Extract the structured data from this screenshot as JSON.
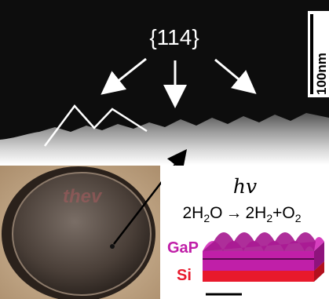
{
  "figure": {
    "sem_label": "{114}",
    "scale_bar_label": "100nm",
    "photon_symbol": "hv",
    "reaction": {
      "left": "2H",
      "left_sub": "2",
      "left_tail": "O",
      "arrow": "→",
      "right_a": "2H",
      "right_a_sub": "2",
      "right_plus": "+O",
      "right_b_sub": "2"
    },
    "layer_top": "GaP",
    "layer_bottom": "Si",
    "wafer_overlay": "thev"
  },
  "colors": {
    "sem_background": "#0d0d0d",
    "gap_magenta": "#c01fa8",
    "si_red": "#e8192c",
    "scale_bar_bg": "#ffffff"
  }
}
